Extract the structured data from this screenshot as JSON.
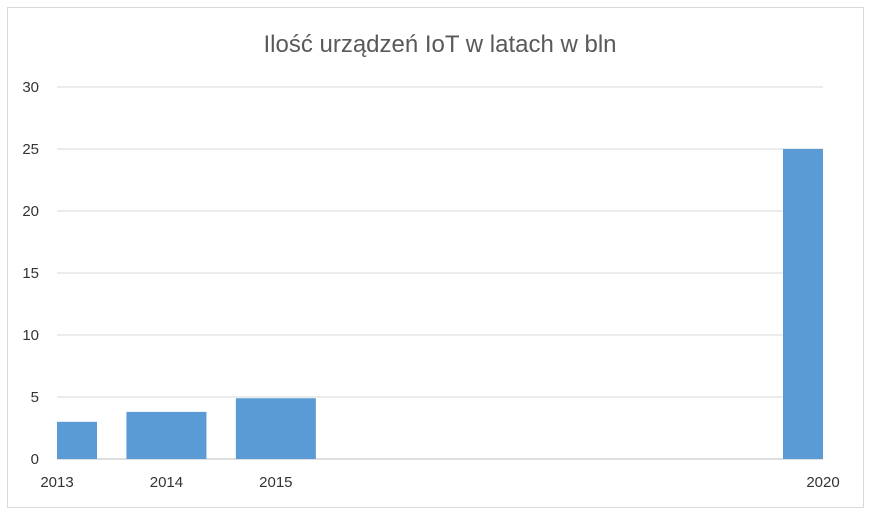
{
  "chart_data": {
    "type": "bar",
    "title": "Ilość urządzeń IoT w latach w bln",
    "x": [
      2013,
      2014,
      2015,
      2020
    ],
    "categories": [
      "2013",
      "2014",
      "2015",
      "2020"
    ],
    "values": [
      3,
      3.8,
      4.9,
      25
    ],
    "xlabel": "",
    "ylabel": "",
    "ylim": [
      0,
      30
    ],
    "yticks": [
      "0",
      "5",
      "10",
      "15",
      "20",
      "25",
      "30"
    ],
    "grid": "horizontal",
    "legend": "none",
    "bar_color": "#5b9bd5"
  }
}
